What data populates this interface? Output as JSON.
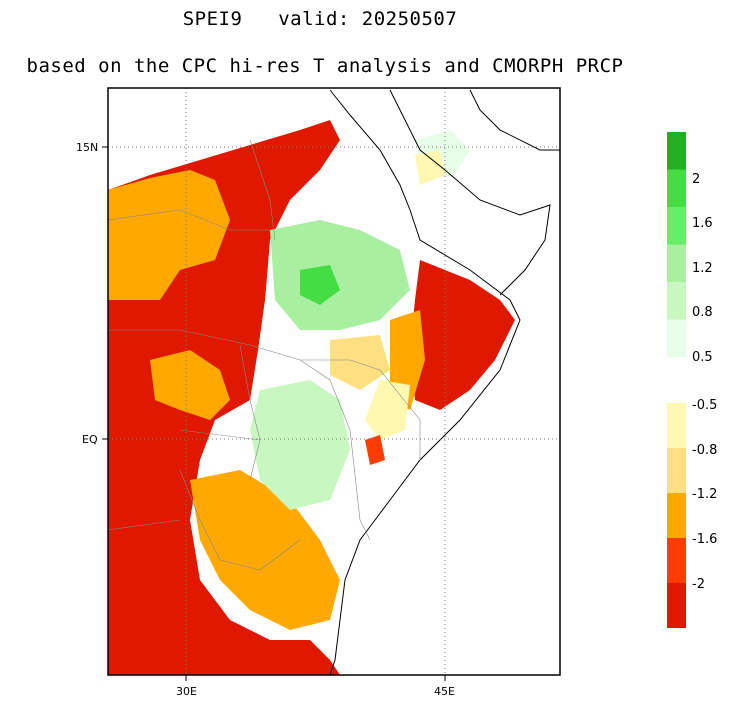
{
  "title": {
    "line1": "SPEI9   valid: 20250507",
    "line2": "based on the CPC hi-res T analysis and CMORPH PRCP"
  },
  "map": {
    "lat_ticks": [
      "15N",
      "EQ"
    ],
    "lon_ticks": [
      "30E",
      "45E"
    ]
  },
  "colorbar": {
    "wet_colors": [
      "#22b022",
      "#44dd44",
      "#66ee66",
      "#a8f0a0",
      "#c8f8c0",
      "#e8fee8"
    ],
    "wet_labels": [
      "2",
      "1.6",
      "1.2",
      "0.8",
      "0.5"
    ],
    "dry_colors": [
      "#fff8b0",
      "#ffe080",
      "#ffa800",
      "#ff3c00",
      "#e01800"
    ],
    "dry_labels": [
      "-0.5",
      "-0.8",
      "-1.2",
      "-1.6",
      "-2"
    ]
  }
}
